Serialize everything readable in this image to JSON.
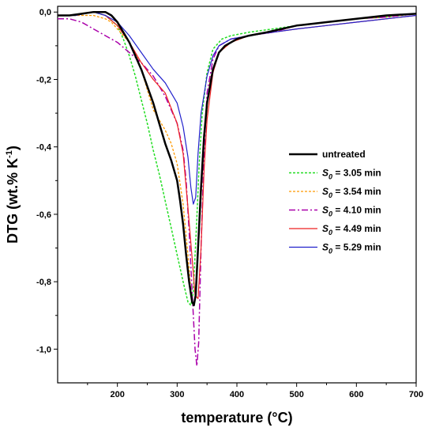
{
  "chart_data": {
    "type": "line",
    "xlabel": "temperature (°C)",
    "ylabel_main": "DTG (wt.% K",
    "ylabel_sup": "-1",
    "ylabel_close": ")",
    "xlim": [
      100,
      700
    ],
    "ylim": [
      -1.1,
      0.0
    ],
    "xticks": [
      200,
      300,
      400,
      500,
      600,
      700
    ],
    "xtick_labels": [
      "200",
      "300",
      "400",
      "500",
      "600",
      "700"
    ],
    "yticks": [
      0.0,
      -0.2,
      -0.4,
      -0.6,
      -0.8,
      -1.0
    ],
    "ytick_labels": [
      "0,0",
      "-0,2",
      "-0,4",
      "-0,6",
      "-0,8",
      "-1,0"
    ],
    "grid": false,
    "legend_position": "center-right",
    "series": [
      {
        "name": "untreated",
        "label_prefix": "",
        "label_sub": "",
        "label_suffix": "untreated",
        "color": "#000000",
        "dash": "",
        "width": 2.5,
        "x": [
          100,
          120,
          140,
          160,
          180,
          190,
          200,
          210,
          220,
          230,
          240,
          250,
          260,
          270,
          280,
          290,
          300,
          305,
          310,
          315,
          320,
          325,
          328,
          331,
          335,
          340,
          345,
          350,
          360,
          370,
          380,
          400,
          420,
          450,
          500,
          550,
          600,
          650,
          700
        ],
        "y": [
          -0.01,
          -0.01,
          -0.005,
          0.0,
          0.0,
          -0.01,
          -0.03,
          -0.06,
          -0.09,
          -0.13,
          -0.17,
          -0.22,
          -0.27,
          -0.33,
          -0.39,
          -0.44,
          -0.5,
          -0.56,
          -0.63,
          -0.72,
          -0.8,
          -0.86,
          -0.87,
          -0.84,
          -0.7,
          -0.52,
          -0.37,
          -0.27,
          -0.17,
          -0.12,
          -0.1,
          -0.08,
          -0.07,
          -0.06,
          -0.04,
          -0.03,
          -0.02,
          -0.01,
          -0.005
        ]
      },
      {
        "name": "S0 = 3.05 min",
        "label_prefix": "S",
        "label_sub": "0",
        "label_suffix": " = 3.05 min",
        "color": "#22dd22",
        "dash": "3,2",
        "width": 1.5,
        "x": [
          100,
          130,
          160,
          180,
          200,
          210,
          220,
          230,
          240,
          250,
          260,
          270,
          280,
          290,
          300,
          310,
          318,
          323,
          327,
          332,
          337,
          342,
          350,
          360,
          375,
          390,
          420,
          460,
          500,
          550,
          600,
          650,
          700
        ],
        "y": [
          -0.01,
          -0.01,
          0.0,
          -0.01,
          -0.04,
          -0.08,
          -0.13,
          -0.19,
          -0.26,
          -0.33,
          -0.41,
          -0.48,
          -0.56,
          -0.64,
          -0.72,
          -0.8,
          -0.86,
          -0.87,
          -0.83,
          -0.65,
          -0.45,
          -0.3,
          -0.18,
          -0.11,
          -0.08,
          -0.07,
          -0.06,
          -0.05,
          -0.04,
          -0.03,
          -0.02,
          -0.015,
          -0.005
        ]
      },
      {
        "name": "S0 = 3.54 min",
        "label_prefix": "S",
        "label_sub": "0",
        "label_suffix": " = 3.54 min",
        "color": "#ff9900",
        "dash": "3,2",
        "width": 1.3,
        "x": [
          100,
          130,
          160,
          180,
          190,
          200,
          210,
          220,
          230,
          240,
          250,
          260,
          270,
          280,
          290,
          300,
          310,
          318,
          324,
          328,
          332,
          338,
          345,
          355,
          370,
          390,
          420,
          460,
          500,
          550,
          600,
          650,
          700
        ],
        "y": [
          -0.01,
          -0.01,
          -0.01,
          -0.02,
          -0.03,
          -0.05,
          -0.07,
          -0.09,
          -0.12,
          -0.17,
          -0.23,
          -0.29,
          -0.32,
          -0.35,
          -0.39,
          -0.45,
          -0.57,
          -0.72,
          -0.85,
          -0.87,
          -0.82,
          -0.62,
          -0.38,
          -0.2,
          -0.12,
          -0.09,
          -0.07,
          -0.06,
          -0.04,
          -0.03,
          -0.02,
          -0.015,
          -0.005
        ]
      },
      {
        "name": "S0 = 4.10 min",
        "label_prefix": "S",
        "label_sub": "0",
        "label_suffix": " = 4.10 min",
        "color": "#aa00aa",
        "dash": "8,3,2,3",
        "width": 1.5,
        "x": [
          100,
          120,
          140,
          160,
          180,
          200,
          220,
          240,
          260,
          280,
          290,
          300,
          310,
          315,
          320,
          325,
          330,
          333,
          336,
          340,
          345,
          350,
          360,
          370,
          390,
          420,
          460,
          500,
          550,
          600,
          650,
          700
        ],
        "y": [
          -0.02,
          -0.02,
          -0.03,
          -0.05,
          -0.07,
          -0.09,
          -0.12,
          -0.15,
          -0.19,
          -0.25,
          -0.29,
          -0.33,
          -0.41,
          -0.5,
          -0.65,
          -0.83,
          -1.0,
          -1.05,
          -0.98,
          -0.7,
          -0.42,
          -0.24,
          -0.14,
          -0.1,
          -0.08,
          -0.07,
          -0.06,
          -0.04,
          -0.03,
          -0.02,
          -0.015,
          -0.005
        ]
      },
      {
        "name": "S0 = 4.49 min",
        "label_prefix": "S",
        "label_sub": "0",
        "label_suffix": " = 4.49 min",
        "color": "#ee2222",
        "dash": "",
        "width": 1.2,
        "x": [
          100,
          130,
          160,
          180,
          200,
          220,
          240,
          260,
          280,
          300,
          310,
          318,
          325,
          330,
          335,
          340,
          345,
          350,
          360,
          370,
          390,
          420,
          460,
          500,
          550,
          600,
          650,
          700
        ],
        "y": [
          -0.01,
          -0.01,
          0.0,
          -0.01,
          -0.04,
          -0.09,
          -0.15,
          -0.2,
          -0.24,
          -0.33,
          -0.42,
          -0.58,
          -0.73,
          -0.84,
          -0.85,
          -0.7,
          -0.47,
          -0.32,
          -0.18,
          -0.12,
          -0.09,
          -0.07,
          -0.06,
          -0.05,
          -0.04,
          -0.03,
          -0.02,
          -0.01
        ]
      },
      {
        "name": "S0 = 5.29 min",
        "label_prefix": "S",
        "label_sub": "0",
        "label_suffix": " = 5.29 min",
        "color": "#2222cc",
        "dash": "",
        "width": 1.2,
        "x": [
          100,
          130,
          160,
          180,
          200,
          220,
          240,
          260,
          280,
          300,
          310,
          318,
          323,
          327,
          331,
          335,
          340,
          350,
          360,
          370,
          390,
          420,
          460,
          500,
          550,
          600,
          650,
          700
        ],
        "y": [
          -0.01,
          -0.01,
          0.0,
          -0.01,
          -0.03,
          -0.07,
          -0.12,
          -0.17,
          -0.21,
          -0.27,
          -0.34,
          -0.43,
          -0.52,
          -0.57,
          -0.55,
          -0.42,
          -0.3,
          -0.19,
          -0.13,
          -0.1,
          -0.08,
          -0.07,
          -0.06,
          -0.05,
          -0.04,
          -0.03,
          -0.02,
          -0.01
        ]
      }
    ]
  }
}
